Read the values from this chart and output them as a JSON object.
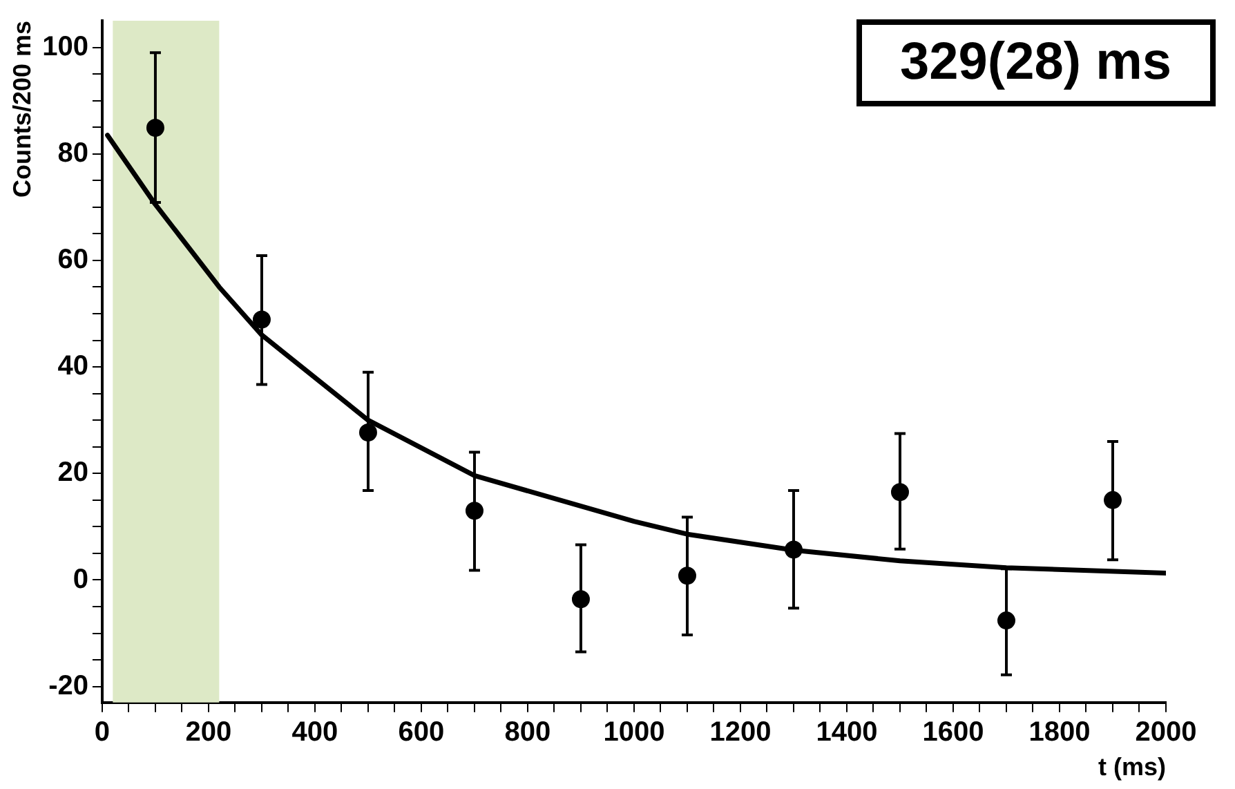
{
  "chart_data": {
    "type": "scatter",
    "xlabel": "t (ms)",
    "ylabel": "Counts/200 ms",
    "annotations": [
      "329(28) ms"
    ],
    "xlim": [
      0,
      2000
    ],
    "ylim": [
      -23,
      105
    ],
    "xticks": [
      0,
      {
        "value": 50,
        "label": null
      },
      {
        "value": 100,
        "label": null
      },
      {
        "value": 150,
        "label": null
      },
      200,
      {
        "value": 250,
        "label": null
      },
      {
        "value": 300,
        "label": null
      },
      {
        "value": 350,
        "label": null
      },
      400,
      {
        "value": 450,
        "label": null
      },
      {
        "value": 500,
        "label": null
      },
      {
        "value": 550,
        "label": null
      },
      600,
      {
        "value": 650,
        "label": null
      },
      {
        "value": 700,
        "label": null
      },
      {
        "value": 750,
        "label": null
      },
      800,
      {
        "value": 850,
        "label": null
      },
      {
        "value": 900,
        "label": null
      },
      {
        "value": 950,
        "label": null
      },
      1000,
      {
        "value": 1050,
        "label": null
      },
      {
        "value": 1100,
        "label": null
      },
      {
        "value": 1150,
        "label": null
      },
      1200,
      {
        "value": 1250,
        "label": null
      },
      {
        "value": 1300,
        "label": null
      },
      {
        "value": 1350,
        "label": null
      },
      1400,
      {
        "value": 1450,
        "label": null
      },
      {
        "value": 1500,
        "label": null
      },
      {
        "value": 1550,
        "label": null
      },
      1600,
      {
        "value": 1650,
        "label": null
      },
      {
        "value": 1700,
        "label": null
      },
      {
        "value": 1750,
        "label": null
      },
      1800,
      {
        "value": 1850,
        "label": null
      },
      {
        "value": 1900,
        "label": null
      },
      {
        "value": 1950,
        "label": null
      },
      2000
    ],
    "yticks": [
      -20,
      {
        "value": -15,
        "label": null
      },
      {
        "value": -10,
        "label": null
      },
      {
        "value": -5,
        "label": null
      },
      0,
      {
        "value": 5,
        "label": null
      },
      {
        "value": 10,
        "label": null
      },
      {
        "value": 15,
        "label": null
      },
      20,
      {
        "value": 25,
        "label": null
      },
      {
        "value": 30,
        "label": null
      },
      {
        "value": 35,
        "label": null
      },
      40,
      {
        "value": 45,
        "label": null
      },
      {
        "value": 50,
        "label": null
      },
      {
        "value": 55,
        "label": null
      },
      60,
      {
        "value": 65,
        "label": null
      },
      {
        "value": 70,
        "label": null
      },
      {
        "value": 75,
        "label": null
      },
      80,
      {
        "value": 85,
        "label": null
      },
      {
        "value": 90,
        "label": null
      },
      {
        "value": 95,
        "label": null
      },
      100
    ],
    "bands": [
      {
        "axis": "x",
        "from": 20,
        "to": 220,
        "color": "#dde9c6"
      }
    ],
    "series": [
      {
        "type": "line",
        "color": "#000000",
        "marker": "none",
        "line_style": "solid",
        "x": [
          10,
          100,
          220,
          300,
          500,
          700,
          1000,
          1100,
          1300,
          1500,
          1700,
          2000
        ],
        "values": [
          83.5,
          70.5,
          55,
          46,
          30,
          19.6,
          11,
          8.6,
          5.6,
          3.6,
          2.3,
          1.3
        ]
      },
      {
        "color": "#000000",
        "marker": "circle",
        "x": [
          100,
          300,
          500,
          700,
          900,
          1100,
          1300,
          1500,
          1700,
          1900
        ],
        "values": [
          84.9,
          48.9,
          27.7,
          13,
          -3.6,
          0.8,
          5.7,
          16.5,
          -7.6,
          15
        ],
        "errors": [
          [
            70.9,
            99
          ],
          [
            36.7,
            60.9
          ],
          [
            16.8,
            39
          ],
          [
            1.8,
            24
          ],
          [
            -13.5,
            6.6
          ],
          [
            -10.3,
            11.8
          ],
          [
            -5.3,
            16.8
          ],
          [
            5.8,
            27.5
          ],
          [
            -17.8,
            2.1
          ],
          [
            3.8,
            26
          ]
        ]
      }
    ]
  }
}
